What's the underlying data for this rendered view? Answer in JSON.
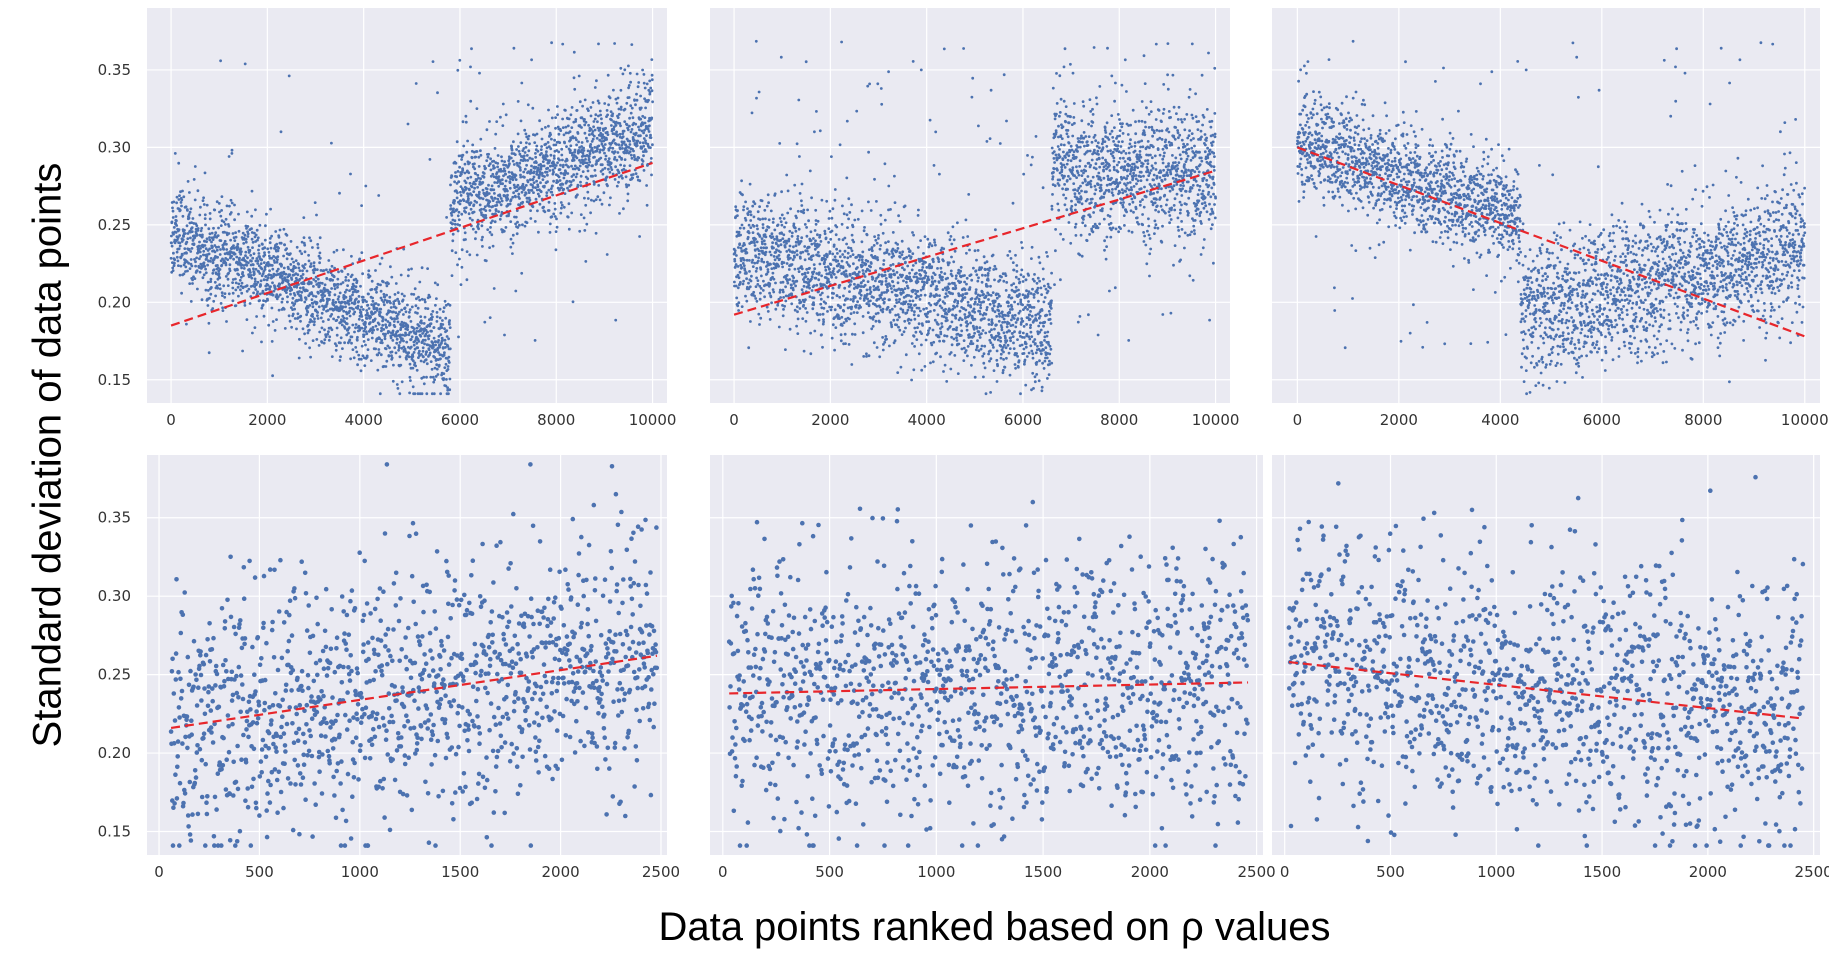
{
  "figure": {
    "ylabel": "Standard deviation of data points",
    "xlabel": "Data points ranked based on ρ values"
  },
  "colors": {
    "background": "#eaeaf2",
    "grid": "#ffffff",
    "points": "#4c72b0",
    "trend": "#e8262b",
    "tick_text": "#333333"
  },
  "chart_data": [
    {
      "type": "scatter",
      "panel": "top-left",
      "xlim": [
        -500,
        10300
      ],
      "ylim": [
        0.135,
        0.39
      ],
      "xticks": [
        0,
        2000,
        4000,
        6000,
        8000,
        10000
      ],
      "xtick_labels": [
        "0",
        "2000",
        "4000",
        "6000",
        "8000",
        "10000"
      ],
      "yticks": [
        0.15,
        0.2,
        0.25,
        0.3,
        0.35
      ],
      "ytick_labels": [
        "0.15",
        "0.20",
        "0.25",
        "0.30",
        "0.35"
      ],
      "show_yticks": true,
      "n_points": 10000,
      "x_max": 10000,
      "segments": [
        {
          "x0": 0,
          "x1": 5800,
          "y0": 0.245,
          "y1": 0.168,
          "spread": 0.016,
          "outlier_rate": 0.02
        },
        {
          "x0": 5800,
          "x1": 10000,
          "y0": 0.262,
          "y1": 0.312,
          "spread": 0.018,
          "outlier_rate": 0.03
        }
      ],
      "trend": {
        "x": [
          0,
          10000
        ],
        "y": [
          0.185,
          0.29
        ]
      }
    },
    {
      "type": "scatter",
      "panel": "top-middle",
      "xlim": [
        -500,
        10300
      ],
      "ylim": [
        0.135,
        0.39
      ],
      "xticks": [
        0,
        2000,
        4000,
        6000,
        8000,
        10000
      ],
      "xtick_labels": [
        "0",
        "2000",
        "4000",
        "6000",
        "8000",
        "10000"
      ],
      "yticks": [
        0.15,
        0.2,
        0.25,
        0.3,
        0.35
      ],
      "ytick_labels": [
        "0.15",
        "0.20",
        "0.25",
        "0.30",
        "0.35"
      ],
      "show_yticks": false,
      "n_points": 10000,
      "x_max": 10000,
      "segments": [
        {
          "x0": 0,
          "x1": 6600,
          "y0": 0.235,
          "y1": 0.183,
          "spread": 0.02,
          "outlier_rate": 0.05
        },
        {
          "x0": 6600,
          "x1": 10000,
          "y0": 0.285,
          "y1": 0.282,
          "spread": 0.022,
          "outlier_rate": 0.04
        }
      ],
      "trend": {
        "x": [
          0,
          10000
        ],
        "y": [
          0.192,
          0.285
        ]
      }
    },
    {
      "type": "scatter",
      "panel": "top-right",
      "xlim": [
        -500,
        10300
      ],
      "ylim": [
        0.135,
        0.39
      ],
      "xticks": [
        0,
        2000,
        4000,
        6000,
        8000,
        10000
      ],
      "xtick_labels": [
        "0",
        "2000",
        "4000",
        "6000",
        "8000",
        "10000"
      ],
      "yticks": [
        0.15,
        0.2,
        0.25,
        0.3,
        0.35
      ],
      "ytick_labels": [
        "0.15",
        "0.20",
        "0.25",
        "0.30",
        "0.35"
      ],
      "show_yticks": false,
      "n_points": 10000,
      "x_max": 10000,
      "segments": [
        {
          "x0": 0,
          "x1": 4400,
          "y0": 0.305,
          "y1": 0.252,
          "spread": 0.016,
          "outlier_rate": 0.03
        },
        {
          "x0": 4400,
          "x1": 10000,
          "y0": 0.19,
          "y1": 0.235,
          "spread": 0.022,
          "outlier_rate": 0.03
        }
      ],
      "trend": {
        "x": [
          0,
          10000
        ],
        "y": [
          0.3,
          0.178
        ]
      }
    },
    {
      "type": "scatter",
      "panel": "bottom-left",
      "xlim": [
        -60,
        2530
      ],
      "ylim": [
        0.135,
        0.39
      ],
      "xticks": [
        0,
        500,
        1000,
        1500,
        2000,
        2500
      ],
      "xtick_labels": [
        "0",
        "500",
        "1000",
        "1500",
        "2000",
        "2500"
      ],
      "yticks": [
        0.15,
        0.2,
        0.25,
        0.3,
        0.35
      ],
      "ytick_labels": [
        "0.15",
        "0.20",
        "0.25",
        "0.30",
        "0.35"
      ],
      "show_yticks": true,
      "n_points": 2500,
      "x_min": 60,
      "x_max": 2480,
      "segments": [
        {
          "x0": 60,
          "x1": 2480,
          "y0": 0.215,
          "y1": 0.262,
          "spread": 0.042,
          "outlier_rate": 0.0
        }
      ],
      "trend": {
        "x": [
          60,
          2480
        ],
        "y": [
          0.216,
          0.262
        ]
      }
    },
    {
      "type": "scatter",
      "panel": "bottom-middle",
      "xlim": [
        -60,
        2530
      ],
      "ylim": [
        0.135,
        0.39
      ],
      "xticks": [
        0,
        500,
        1000,
        1500,
        2000,
        2500
      ],
      "xtick_labels": [
        "0",
        "500",
        "1000",
        "1500",
        "2000",
        "2500"
      ],
      "yticks": [
        0.15,
        0.2,
        0.25,
        0.3,
        0.35
      ],
      "ytick_labels": [
        "0.15",
        "0.20",
        "0.25",
        "0.30",
        "0.35"
      ],
      "show_yticks": false,
      "n_points": 2500,
      "x_min": 30,
      "x_max": 2460,
      "segments": [
        {
          "x0": 30,
          "x1": 2460,
          "y0": 0.238,
          "y1": 0.245,
          "spread": 0.042,
          "outlier_rate": 0.0
        }
      ],
      "trend": {
        "x": [
          30,
          2460
        ],
        "y": [
          0.238,
          0.245
        ]
      }
    },
    {
      "type": "scatter",
      "panel": "bottom-right",
      "xlim": [
        -60,
        2530
      ],
      "ylim": [
        0.135,
        0.39
      ],
      "xticks": [
        0,
        500,
        1000,
        1500,
        2000,
        2500
      ],
      "xtick_labels": [
        "0",
        "500",
        "1000",
        "1500",
        "2000",
        "2500"
      ],
      "yticks": [
        0.15,
        0.2,
        0.25,
        0.3,
        0.35
      ],
      "ytick_labels": [
        "0.15",
        "0.20",
        "0.25",
        "0.30",
        "0.35"
      ],
      "show_yticks": false,
      "n_points": 2500,
      "x_min": 20,
      "x_max": 2450,
      "segments": [
        {
          "x0": 20,
          "x1": 2450,
          "y0": 0.258,
          "y1": 0.222,
          "spread": 0.042,
          "outlier_rate": 0.0
        }
      ],
      "trend": {
        "x": [
          20,
          2450
        ],
        "y": [
          0.258,
          0.222
        ]
      }
    }
  ]
}
